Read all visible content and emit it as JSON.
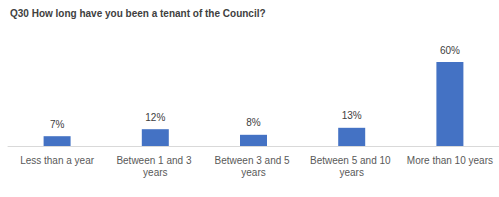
{
  "chart_data": {
    "type": "bar",
    "title": "Q30 How long have you been a tenant of the Council?",
    "categories": [
      "Less than a year",
      "Between 1 and 3 years",
      "Between 3 and 5 years",
      "Between 5 and 10 years",
      "More than 10 years"
    ],
    "values": [
      7,
      12,
      8,
      13,
      60
    ],
    "value_labels": [
      "7%",
      "12%",
      "8%",
      "13%",
      "60%"
    ],
    "color": "#4472c4",
    "ylim": [
      0,
      60
    ],
    "grid": false,
    "data_labels": true,
    "tick_labels": "x"
  }
}
